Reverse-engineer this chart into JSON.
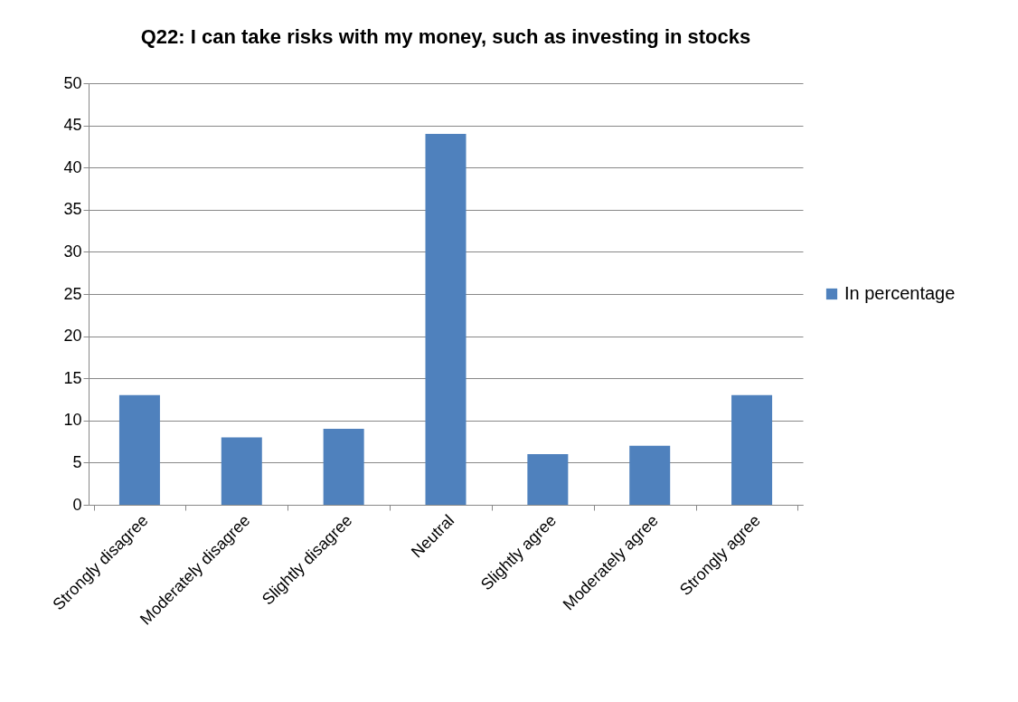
{
  "chart_data": {
    "type": "bar",
    "title": "Q22: I can take risks with my money, such as investing in stocks",
    "categories": [
      "Strongly disagree",
      "Moderately disagree",
      "Slightly disagree",
      "Neutral",
      "Slightly agree",
      "Moderately agree",
      "Strongly agree"
    ],
    "series": [
      {
        "name": "In percentage",
        "color": "#4f81bd",
        "values": [
          13,
          8,
          9,
          44,
          6,
          7,
          13
        ]
      }
    ],
    "ylim": [
      0,
      50
    ],
    "yticks": [
      0,
      5,
      10,
      15,
      20,
      25,
      30,
      35,
      40,
      45,
      50
    ],
    "grid": "y",
    "legend": "right"
  }
}
